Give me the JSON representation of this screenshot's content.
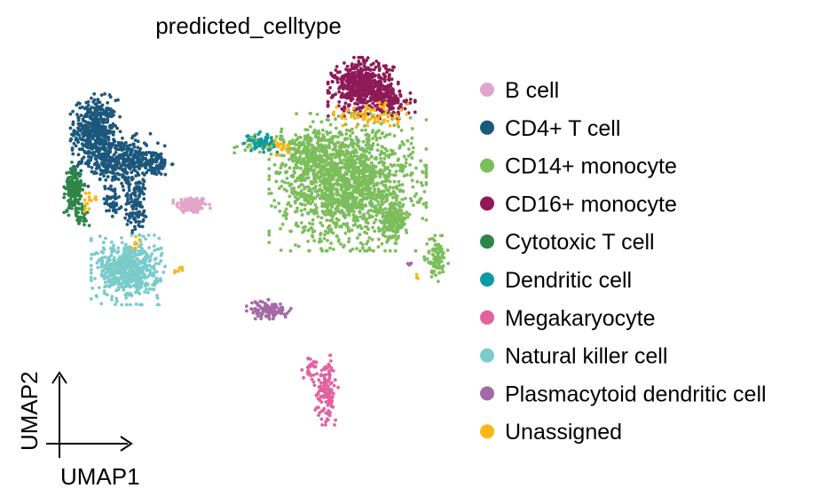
{
  "chart_data": {
    "type": "scatter",
    "title": "predicted_celltype",
    "xlabel": "UMAP1",
    "ylabel": "UMAP2",
    "xlim": [
      0,
      100
    ],
    "ylim": [
      0,
      100
    ],
    "grid": false,
    "legend_position": "right",
    "series": [
      {
        "name": "B cell",
        "color": "#E2A4C9",
        "clusters": [
          {
            "center": [
              35.5,
              63.0
            ],
            "spread": [
              2.0,
              1.1
            ],
            "n": 120
          }
        ]
      },
      {
        "name": "CD4+ T cell",
        "color": "#1C577C",
        "clusters": [
          {
            "center": [
              10.5,
              83.0
            ],
            "spread": [
              2.7,
              3.8
            ],
            "n": 420
          },
          {
            "center": [
              16.5,
              74.5
            ],
            "spread": [
              5.0,
              3.0
            ],
            "n": 380
          },
          {
            "center": [
              25.5,
              74.0
            ],
            "spread": [
              2.2,
              1.6
            ],
            "n": 90
          },
          {
            "center": [
              21.0,
              63.0
            ],
            "spread": [
              1.6,
              3.5
            ],
            "n": 120
          },
          {
            "center": [
              15.0,
              64.5
            ],
            "spread": [
              1.0,
              2.2
            ],
            "n": 40
          }
        ]
      },
      {
        "name": "CD14+ monocyte",
        "color": "#7CBD5C",
        "clusters": [
          {
            "center": [
              76.0,
              69.0
            ],
            "spread": [
              8.5,
              7.5
            ],
            "n": 1600
          },
          {
            "center": [
              66.0,
              76.0
            ],
            "spread": [
              3.0,
              2.5
            ],
            "n": 200
          },
          {
            "center": [
              88.0,
              59.0
            ],
            "spread": [
              1.6,
              2.5
            ],
            "n": 160
          },
          {
            "center": [
              99.0,
              49.0
            ],
            "spread": [
              1.3,
              2.5
            ],
            "n": 90
          },
          {
            "center": [
              55.0,
              79.0
            ],
            "spread": [
              3.5,
              1.0
            ],
            "n": 60
          },
          {
            "center": [
              18.0,
              47.0
            ],
            "spread": [
              1.2,
              1.4
            ],
            "n": 25
          }
        ]
      },
      {
        "name": "CD16+ monocyte",
        "color": "#8E1A58",
        "clusters": [
          {
            "center": [
              80.0,
              94.0
            ],
            "spread": [
              3.8,
              3.2
            ],
            "n": 600
          },
          {
            "center": [
              87.5,
              89.5
            ],
            "spread": [
              2.5,
              1.6
            ],
            "n": 90
          }
        ]
      },
      {
        "name": "Cytotoxic T cell",
        "color": "#2E8548",
        "clusters": [
          {
            "center": [
              5.0,
              67.0
            ],
            "spread": [
              1.1,
              3.0
            ],
            "n": 170
          },
          {
            "center": [
              7.0,
              60.0
            ],
            "spread": [
              1.0,
              1.5
            ],
            "n": 30
          }
        ]
      },
      {
        "name": "Dendritic cell",
        "color": "#0E9AA2",
        "clusters": [
          {
            "center": [
              53.5,
              79.5
            ],
            "spread": [
              1.8,
              1.1
            ],
            "n": 60
          }
        ]
      },
      {
        "name": "Megakaryocyte",
        "color": "#E063A0",
        "clusters": [
          {
            "center": [
              70.5,
              14.5
            ],
            "spread": [
              1.3,
              3.8
            ],
            "n": 130
          },
          {
            "center": [
              66.5,
              20.5
            ],
            "spread": [
              1.0,
              1.6
            ],
            "n": 30
          }
        ]
      },
      {
        "name": "Natural killer cell",
        "color": "#7ACBCB",
        "clusters": [
          {
            "center": [
              19.0,
              46.0
            ],
            "spread": [
              4.0,
              3.8
            ],
            "n": 560
          }
        ]
      },
      {
        "name": "Plasmacytoid dendritic cell",
        "color": "#A46AA5",
        "clusters": [
          {
            "center": [
              55.5,
              35.5
            ],
            "spread": [
              2.4,
              1.2
            ],
            "n": 110
          },
          {
            "center": [
              92.0,
              47.5
            ],
            "spread": [
              0.3,
              0.3
            ],
            "n": 5
          }
        ]
      },
      {
        "name": "Unassigned",
        "color": "#F9B715",
        "clusters": [
          {
            "center": [
              82.0,
              86.5
            ],
            "spread": [
              4.0,
              1.6
            ],
            "n": 70
          },
          {
            "center": [
              58.5,
              78.5
            ],
            "spread": [
              1.5,
              1.0
            ],
            "n": 20
          },
          {
            "center": [
              8.5,
              64.0
            ],
            "spread": [
              0.9,
              1.5
            ],
            "n": 14
          },
          {
            "center": [
              32.0,
              46.0
            ],
            "spread": [
              1.0,
              0.6
            ],
            "n": 8
          },
          {
            "center": [
              21.0,
              53.0
            ],
            "spread": [
              0.4,
              1.2
            ],
            "n": 6
          },
          {
            "center": [
              94.0,
              44.5
            ],
            "spread": [
              0.3,
              0.3
            ],
            "n": 3
          }
        ]
      }
    ]
  }
}
